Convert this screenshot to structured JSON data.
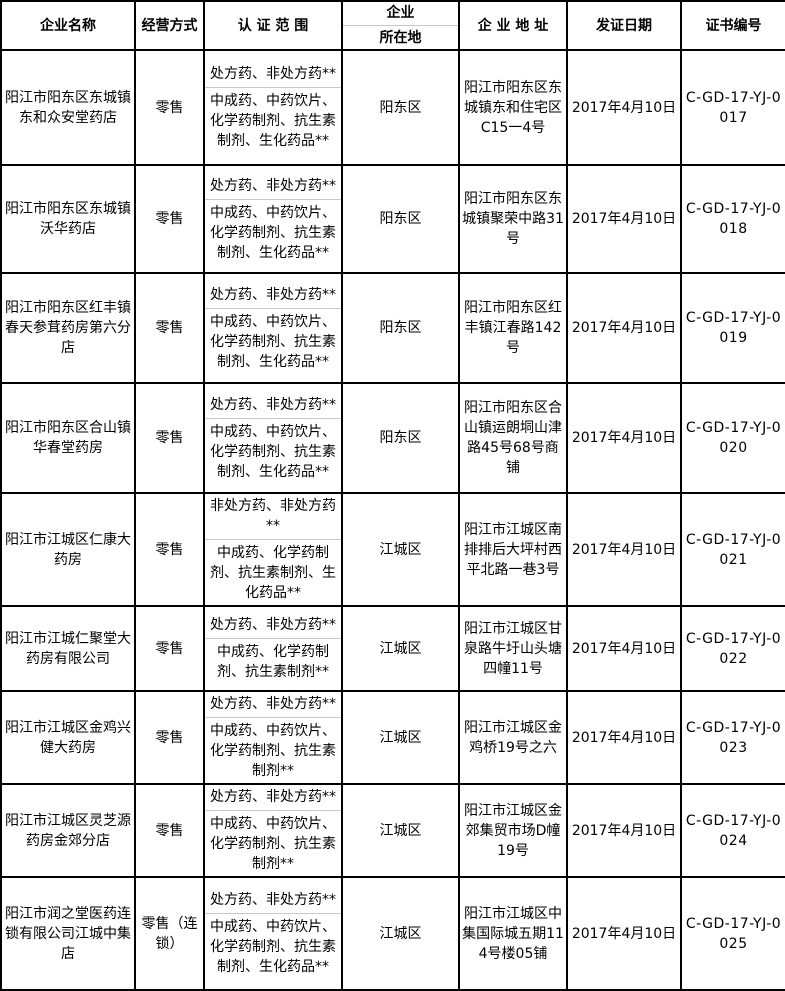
{
  "table": {
    "headers": {
      "name": "企业名称",
      "mode": "经营方式",
      "scope": "认 证 范 围",
      "district_line1": "企业",
      "district_line2": "所在地",
      "address": "企 业 地 址",
      "date": "发证日期",
      "cert": "证书编号"
    },
    "rows": [
      {
        "name": "阳江市阳东区东城镇东和众安堂药店",
        "mode": "零售",
        "scope1": "处方药、非处方药**",
        "scope2": "中成药、中药饮片、化学药制剂、抗生素制剂、生化药品**",
        "district": "阳东区",
        "address": "阳江市阳东区东城镇东和住宅区C15一4号",
        "date": "2017年4月10日",
        "cert": "C-GD-17-YJ-0017"
      },
      {
        "name": "阳江市阳东区东城镇沃华药店",
        "mode": "零售",
        "scope1": "处方药、非处方药**",
        "scope2": "中成药、中药饮片、化学药制剂、抗生素制剂、生化药品**",
        "district": "阳东区",
        "address": "阳江市阳东区东城镇聚荣中路31号",
        "date": "2017年4月10日",
        "cert": "C-GD-17-YJ-0018"
      },
      {
        "name": "阳江市阳东区红丰镇春天参茸药房第六分店",
        "mode": "零售",
        "scope1": "处方药、非处方药**",
        "scope2": "中成药、中药饮片、化学药制剂、抗生素制剂、生化药品**",
        "district": "阳东区",
        "address": "阳江市阳东区红丰镇江春路142号",
        "date": "2017年4月10日",
        "cert": "C-GD-17-YJ-0019"
      },
      {
        "name": "阳江市阳东区合山镇华春堂药房",
        "mode": "零售",
        "scope1": "处方药、非处方药**",
        "scope2": "中成药、中药饮片、化学药制剂、抗生素制剂、生化药品**",
        "district": "阳东区",
        "address": "阳江市阳东区合山镇运朗垌山津路45号68号商铺",
        "date": "2017年4月10日",
        "cert": "C-GD-17-YJ-0020"
      },
      {
        "name": "阳江市江城区仁康大药房",
        "mode": "零售",
        "scope1": "非处方药、非处方药**",
        "scope2": "中成药、化学药制剂、抗生素制剂、生化药品**",
        "district": "江城区",
        "address": "阳江市江城区南排排后大坪村西平北路一巷3号",
        "date": "2017年4月10日",
        "cert": "C-GD-17-YJ-0021"
      },
      {
        "name": "阳江市江城仁聚堂大药房有限公司",
        "mode": "零售",
        "scope1": "处方药、非处方药**",
        "scope2": "中成药、化学药制剂、抗生素制剂**",
        "district": "江城区",
        "address": "阳江市江城区甘泉路牛圩山头塘四幢11号",
        "date": "2017年4月10日",
        "cert": "C-GD-17-YJ-0022"
      },
      {
        "name": "阳江市江城区金鸡兴健大药房",
        "mode": "零售",
        "scope1": "处方药、非处方药**",
        "scope2": "中成药、中药饮片、化学药制剂、抗生素制剂**",
        "district": "江城区",
        "address": "阳江市江城区金鸡桥19号之六",
        "date": "2017年4月10日",
        "cert": "C-GD-17-YJ-0023"
      },
      {
        "name": "阳江市江城区灵芝源药房金郊分店",
        "mode": "零售",
        "scope1": "处方药、非处方药**",
        "scope2": "中成药、中药饮片、化学药制剂、抗生素制剂**",
        "district": "江城区",
        "address": "阳江市江城区金郊集贸市场D幢19号",
        "date": "2017年4月10日",
        "cert": "C-GD-17-YJ-0024"
      },
      {
        "name": "阳江市润之堂医药连锁有限公司江城中集店",
        "mode": "零售（连锁）",
        "scope1": "处方药、非处方药**",
        "scope2": "中成药、中药饮片、化学药制剂、抗生素制剂、生化药品**",
        "district": "江城区",
        "address": "阳江市江城区中集国际城五期114号楼05铺",
        "date": "2017年4月10日",
        "cert": "C-GD-17-YJ-0025"
      }
    ]
  },
  "colors": {
    "border": "#000000",
    "separator": "#c9c9c9",
    "background": "#ffffff",
    "text": "#000000"
  }
}
